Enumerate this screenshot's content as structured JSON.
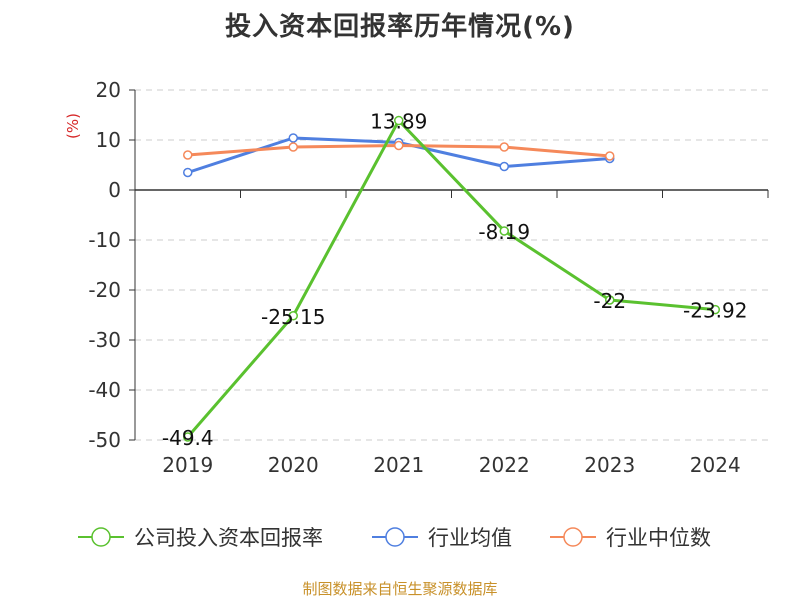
{
  "title": "投入资本回报率历年情况(%)",
  "source": "制图数据来自恒生聚源数据库",
  "chart_data": {
    "type": "line",
    "x": [
      "2019",
      "2020",
      "2021",
      "2022",
      "2023",
      "2024"
    ],
    "ylabel": "(%)",
    "ylim": [
      -50,
      20
    ],
    "yticks": [
      20,
      10,
      0,
      -10,
      -20,
      -30,
      -40,
      -50
    ],
    "grid": true,
    "legend_position": "bottom",
    "series": [
      {
        "name": "公司投入资本回报率",
        "color": "#5ac12f",
        "values": [
          -49.4,
          -25.15,
          13.89,
          -8.19,
          -22,
          -23.92
        ],
        "labels": [
          "-49.4",
          "-25.15",
          "13.89",
          "-8.19",
          "-22",
          "-23.92"
        ]
      },
      {
        "name": "行业均值",
        "color": "#4f7fe0",
        "values": [
          3.5,
          10.4,
          9.5,
          4.7,
          6.3,
          null
        ]
      },
      {
        "name": "行业中位数",
        "color": "#f5895a",
        "values": [
          7.0,
          8.6,
          8.9,
          8.6,
          6.8,
          null
        ]
      }
    ]
  }
}
